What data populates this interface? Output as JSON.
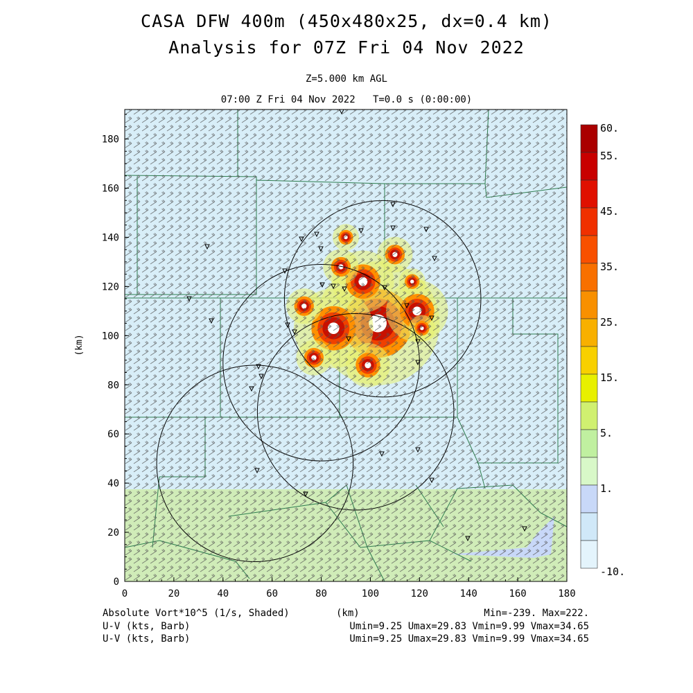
{
  "header": {
    "title_line1": "CASA DFW 400m (450x480x25, dx=0.4 km)",
    "title_line2": "Analysis for 07Z Fri 04 Nov 2022",
    "level": "Z=5.000 km AGL",
    "valid_time": "07:00 Z Fri 04 Nov 2022",
    "elapsed": "T=0.0 s (0:00:00)"
  },
  "axes": {
    "x_label": "(km)",
    "y_label": "(km)",
    "x_range": [
      0,
      180
    ],
    "y_range": [
      0,
      192
    ],
    "x_ticks": [
      "0",
      "20",
      "40",
      "60",
      "80",
      "100",
      "120",
      "140",
      "160",
      "180"
    ],
    "y_ticks": [
      "0",
      "20",
      "40",
      "60",
      "80",
      "100",
      "120",
      "140",
      "160",
      "180"
    ]
  },
  "colorbar": {
    "labels": [
      "60.",
      "55.",
      "45.",
      "35.",
      "25.",
      "15.",
      "5.",
      "1.",
      "-10."
    ],
    "colors_top_to_bottom": [
      "#aa0000",
      "#c80000",
      "#e01000",
      "#f03000",
      "#f85000",
      "#f87000",
      "#f89000",
      "#f8b000",
      "#f8d000",
      "#e8f000",
      "#d0f070",
      "#c0f0a0",
      "#d8f8c8",
      "#c8d8f8",
      "#d0e8f8",
      "#e4f4fc"
    ]
  },
  "footer": {
    "field_label": "Absolute Vort*10^5 (1/s, Shaded)",
    "axis_unit": "(km)",
    "minmax": "Min=-239. Max=222.",
    "barb1_label": "U-V (kts, Barb)",
    "barb1_stats": "Umin=9.25 Umax=29.83 Vmin=9.99 Vmax=34.65",
    "barb2_label": "U-V (kts, Barb)",
    "barb2_stats": "Umin=9.25 Umax=29.83 Vmin=9.99 Vmax=34.65"
  },
  "map": {
    "radar_circles_km": [
      {
        "cx": 105,
        "cy": 115,
        "r": 40
      },
      {
        "cx": 80,
        "cy": 89,
        "r": 40
      },
      {
        "cx": 94,
        "cy": 69,
        "r": 40
      },
      {
        "cx": 53,
        "cy": 48,
        "r": 40
      }
    ],
    "storm_cells_km": [
      {
        "x": 103,
        "y": 105,
        "r": 14
      },
      {
        "x": 85,
        "y": 103,
        "r": 9
      },
      {
        "x": 97,
        "y": 122,
        "r": 7
      },
      {
        "x": 119,
        "y": 110,
        "r": 7
      },
      {
        "x": 73,
        "y": 112,
        "r": 4
      },
      {
        "x": 88,
        "y": 128,
        "r": 4
      },
      {
        "x": 117,
        "y": 122,
        "r": 3
      },
      {
        "x": 99,
        "y": 88,
        "r": 5
      },
      {
        "x": 77,
        "y": 91,
        "r": 4
      },
      {
        "x": 110,
        "y": 133,
        "r": 4
      },
      {
        "x": 90,
        "y": 140,
        "r": 3
      },
      {
        "x": 121,
        "y": 103,
        "r": 3
      }
    ]
  }
}
